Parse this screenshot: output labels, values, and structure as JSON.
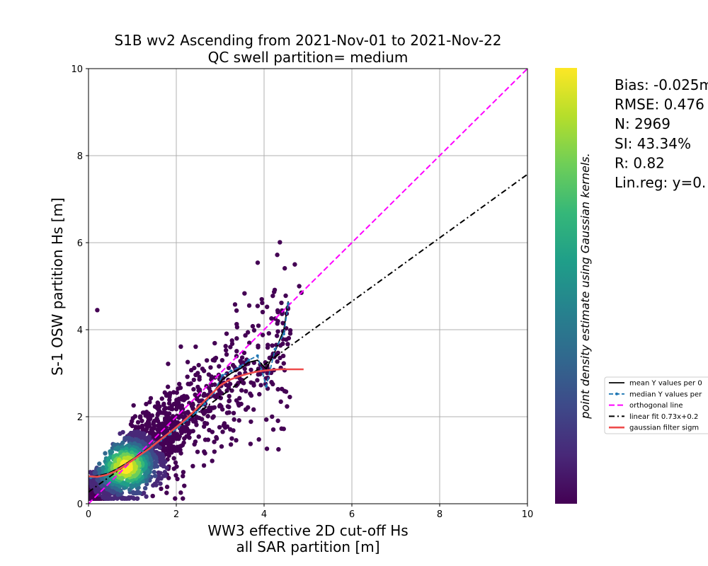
{
  "chart_data": {
    "type": "scatter",
    "title": "S1B wv2 Ascending from 2021-Nov-01 to 2021-Nov-22",
    "subtitle": "QC swell partition= medium",
    "xlabel_line1": "WW3 effective 2D cut-off Hs",
    "xlabel_line2": "all SAR partition [m]",
    "ylabel": "S-1 OSW partition Hs [m]",
    "xlim": [
      0,
      10
    ],
    "ylim": [
      0,
      10
    ],
    "x_ticks": [
      0,
      2,
      4,
      6,
      8,
      10
    ],
    "y_ticks": [
      0,
      2,
      4,
      6,
      8,
      10
    ],
    "grid": true,
    "colorbar_label": "point density estimate using Gaussian kernels.",
    "colormap": [
      "#440154",
      "#482878",
      "#3e4989",
      "#31688e",
      "#26828e",
      "#1f9e89",
      "#35b779",
      "#6ece58",
      "#b5de2b",
      "#fde725"
    ],
    "stats": [
      "Bias: -0.025m",
      "RMSE: 0.476",
      "N: 2969",
      "SI: 43.34%",
      "R: 0.82",
      "Lin.reg: y=0."
    ],
    "legend": {
      "placement": "right",
      "entries": [
        "mean Y values per 0",
        "median Y values per",
        "orthogonal line",
        "linear fit 0.73x+0.2",
        "gaussian filter sigm"
      ]
    },
    "series": [
      {
        "name": "orthogonal line",
        "color": "#ff00ff",
        "x": [
          0,
          10
        ],
        "y": [
          0,
          10
        ]
      },
      {
        "name": "linear fit 0.73x+0.2",
        "color": "#000000",
        "x": [
          0,
          10
        ],
        "y": [
          0.27,
          7.57
        ]
      },
      {
        "name": "mean Y values per 0",
        "color": "#000000",
        "x": [
          0.05,
          0.25,
          0.45,
          0.65,
          0.85,
          1.05,
          1.25,
          1.45,
          1.65,
          1.85,
          2.05,
          2.25,
          2.45,
          2.65,
          2.85,
          3.05,
          3.25,
          3.45,
          3.65,
          3.85,
          4.05,
          4.25,
          4.45,
          4.55
        ],
        "y": [
          0.62,
          0.65,
          0.7,
          0.8,
          0.92,
          1.05,
          1.2,
          1.33,
          1.48,
          1.62,
          1.78,
          1.95,
          2.12,
          2.32,
          2.55,
          2.85,
          3.0,
          3.1,
          3.25,
          3.3,
          3.1,
          3.5,
          4.0,
          4.65
        ]
      },
      {
        "name": "median Y values per",
        "color": "#1f77b4",
        "x": [
          0.05,
          0.25,
          0.45,
          0.65,
          0.85,
          1.05,
          1.25,
          1.45,
          1.65,
          1.85,
          2.05,
          2.25,
          2.45,
          2.65,
          2.85,
          3.05,
          3.25,
          3.45,
          3.65,
          3.85,
          4.05,
          4.25,
          4.45,
          4.55
        ],
        "y": [
          0.6,
          0.63,
          0.68,
          0.78,
          0.9,
          1.03,
          1.18,
          1.32,
          1.46,
          1.6,
          1.76,
          1.93,
          2.1,
          2.3,
          2.55,
          2.95,
          3.05,
          3.15,
          3.3,
          3.4,
          2.7,
          3.55,
          3.9,
          4.6
        ]
      },
      {
        "name": "gaussian filter sigm",
        "color": "#ee4b4b",
        "x": [
          0,
          0.2,
          0.4,
          0.6,
          0.8,
          1.0,
          1.2,
          1.4,
          1.6,
          1.8,
          2.0,
          2.2,
          2.4,
          2.6,
          2.8,
          3.0,
          3.2,
          3.4,
          3.6,
          3.8,
          4.0,
          4.2,
          4.4,
          4.6,
          4.9
        ],
        "y": [
          0.63,
          0.62,
          0.66,
          0.74,
          0.86,
          1.0,
          1.14,
          1.28,
          1.44,
          1.6,
          1.76,
          1.93,
          2.12,
          2.32,
          2.52,
          2.72,
          2.84,
          2.92,
          2.98,
          3.03,
          3.06,
          3.08,
          3.09,
          3.09,
          3.09
        ]
      }
    ]
  }
}
